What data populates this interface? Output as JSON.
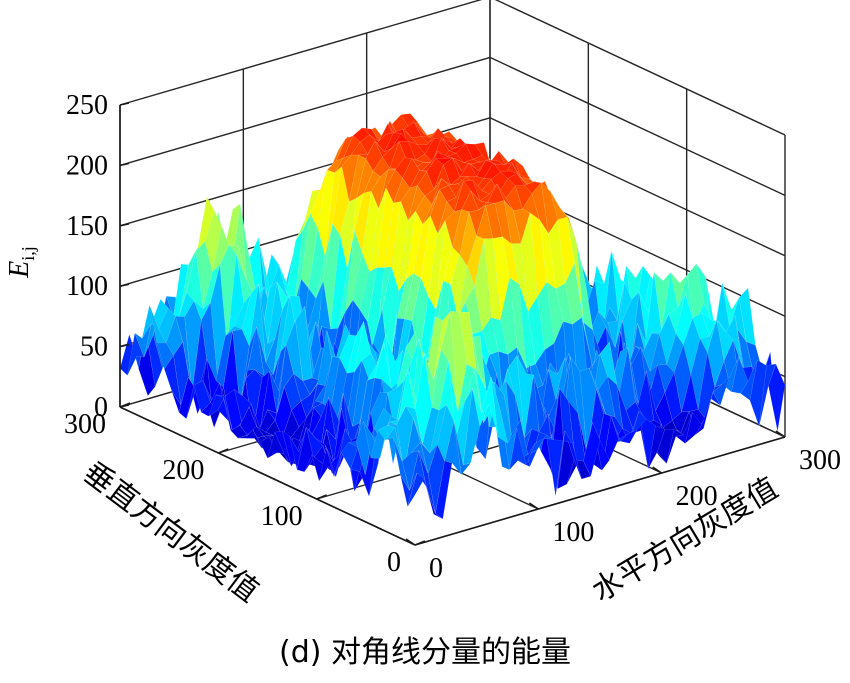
{
  "chart_data": {
    "type": "surface",
    "title": "",
    "caption": "(d) 对角线分量的能量",
    "zlabel_main": "E",
    "zlabel_sub": "i,j",
    "xlabel": "水平方向灰度值",
    "ylabel": "垂直方向灰度值",
    "xlim": [
      0,
      300
    ],
    "ylim": [
      0,
      300
    ],
    "zlim": [
      0,
      250
    ],
    "x_ticks": [
      "0",
      "100",
      "200",
      "300"
    ],
    "y_ticks": [
      "0",
      "100",
      "200",
      "300"
    ],
    "z_ticks": [
      "0",
      "50",
      "100",
      "150",
      "200",
      "250"
    ],
    "grid": true,
    "colormap": "jet",
    "surface_description_levels": {
      "plateau_center_level": 210,
      "plateau_x_range": [
        110,
        210
      ],
      "plateau_y_range": [
        80,
        260
      ],
      "low_floor_level": 15,
      "edge_ridge_level": 120
    }
  }
}
